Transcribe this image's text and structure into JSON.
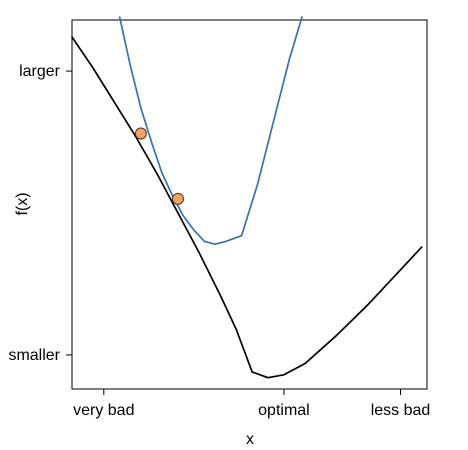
{
  "chart_data": {
    "type": "line",
    "title": "",
    "xlabel": "x",
    "ylabel": "f(x)",
    "xlim": [
      -0.3,
      3.05
    ],
    "ylim": [
      -0.12,
      1.18
    ],
    "grid": false,
    "legend": "none",
    "x_ticks": [
      {
        "value": 0.0,
        "label": "very bad"
      },
      {
        "value": 1.7,
        "label": "optimal"
      },
      {
        "value": 2.8,
        "label": "less bad"
      }
    ],
    "y_ticks": [
      {
        "value": 1.0,
        "label": "larger"
      },
      {
        "value": 0.0,
        "label": "smaller"
      }
    ],
    "series": [
      {
        "color": "#000000",
        "points": [
          [
            -0.3,
            1.12
          ],
          [
            -0.1,
            1.01
          ],
          [
            0.1,
            0.89
          ],
          [
            0.3,
            0.77
          ],
          [
            0.5,
            0.64
          ],
          [
            0.7,
            0.5
          ],
          [
            0.9,
            0.36
          ],
          [
            1.1,
            0.21
          ],
          [
            1.25,
            0.09
          ],
          [
            1.4,
            -0.06
          ],
          [
            1.55,
            -0.08
          ],
          [
            1.7,
            -0.07
          ],
          [
            1.9,
            -0.03
          ],
          [
            2.2,
            0.07
          ],
          [
            2.5,
            0.18
          ],
          [
            2.8,
            0.3
          ],
          [
            2.9,
            0.34
          ],
          [
            3.0,
            0.38
          ]
        ]
      },
      {
        "color": "#3a70b0",
        "points": [
          [
            0.15,
            1.19
          ],
          [
            0.25,
            1.02
          ],
          [
            0.35,
            0.87
          ],
          [
            0.45,
            0.75
          ],
          [
            0.55,
            0.64
          ],
          [
            0.65,
            0.56
          ],
          [
            0.75,
            0.49
          ],
          [
            0.85,
            0.44
          ],
          [
            0.95,
            0.4
          ],
          [
            1.05,
            0.39
          ],
          [
            1.15,
            0.4
          ],
          [
            1.3,
            0.42
          ],
          [
            1.45,
            0.6
          ],
          [
            1.6,
            0.82
          ],
          [
            1.75,
            1.04
          ],
          [
            1.87,
            1.19
          ]
        ]
      }
    ],
    "points": [
      {
        "x": 0.35,
        "y": 0.78,
        "color": "#f4a460"
      },
      {
        "x": 0.7,
        "y": 0.55,
        "color": "#f4a460"
      }
    ]
  }
}
